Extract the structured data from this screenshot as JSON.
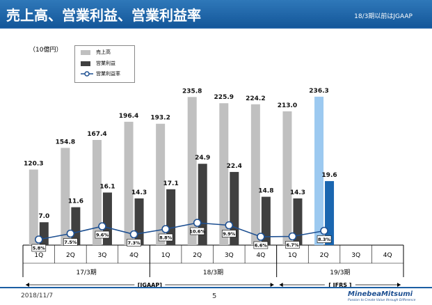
{
  "header": {
    "title": "売上高、営業利益、営業利益率",
    "note": "18/3期以前はJGAAP"
  },
  "unit_label": "（10億円）",
  "legend": [
    {
      "label": "売上高",
      "kind": "bar",
      "color": "#c0c0c0"
    },
    {
      "label": "営業利益",
      "kind": "bar",
      "color": "#404040"
    },
    {
      "label": "営業利益率",
      "kind": "line",
      "color": "#1d4f91"
    }
  ],
  "chart_data": {
    "type": "bar",
    "categories": [
      "1Q",
      "2Q",
      "3Q",
      "4Q",
      "1Q",
      "2Q",
      "3Q",
      "4Q",
      "1Q",
      "2Q",
      "3Q",
      "4Q"
    ],
    "groups": [
      {
        "label": "17/3期",
        "span": [
          0,
          3
        ]
      },
      {
        "label": "18/3期",
        "span": [
          4,
          7
        ]
      },
      {
        "label": "19/3期",
        "span": [
          8,
          11
        ]
      }
    ],
    "standards": [
      {
        "label": "[JGAAP]",
        "span": [
          0,
          7
        ]
      },
      {
        "label": "[ IFRS ]",
        "span": [
          8,
          11
        ]
      }
    ],
    "series": [
      {
        "name": "売上高",
        "values": [
          120.3,
          154.8,
          167.4,
          196.4,
          193.2,
          235.8,
          225.9,
          224.2,
          213.0,
          236.3,
          null,
          null
        ],
        "labels": [
          "120.3",
          "154.8",
          "167.4",
          "196.4",
          "193.2",
          "235.8",
          "225.9",
          "224.2",
          "213.0",
          "236.3",
          "",
          ""
        ]
      },
      {
        "name": "営業利益",
        "values": [
          7.0,
          11.6,
          16.1,
          14.3,
          17.1,
          24.9,
          22.4,
          14.8,
          14.3,
          19.6,
          null,
          null
        ],
        "labels": [
          "7.0",
          "11.6",
          "16.1",
          "14.3",
          "17.1",
          "24.9",
          "22.4",
          "14.8",
          "14.3",
          "19.6",
          "",
          ""
        ]
      },
      {
        "name": "営業利益率",
        "values": [
          5.8,
          7.5,
          9.6,
          7.3,
          8.8,
          10.6,
          9.9,
          6.6,
          6.7,
          8.3,
          null,
          null
        ],
        "labels": [
          "5.8%",
          "7.5%",
          "9.6%",
          "7.3%",
          "8.8%",
          "10.6%",
          "9.9%",
          "6.6%",
          "6.7%",
          "8.3%",
          "",
          ""
        ]
      }
    ],
    "highlight_index": 9,
    "colors": {
      "sales": "#c0c0c0",
      "profit": "#404040",
      "sales_highlight": "#9cc9f0",
      "profit_highlight": "#1a66b0",
      "margin_line": "#1d4f91"
    },
    "ylim_bars": [
      0,
      280
    ],
    "ylim_margin": [
      0,
      45
    ]
  },
  "footer": {
    "date": "2018/11/7",
    "page": "5",
    "logo": "MinebeaMitsumi",
    "tagline": "Passion to Create Value through Difference"
  }
}
